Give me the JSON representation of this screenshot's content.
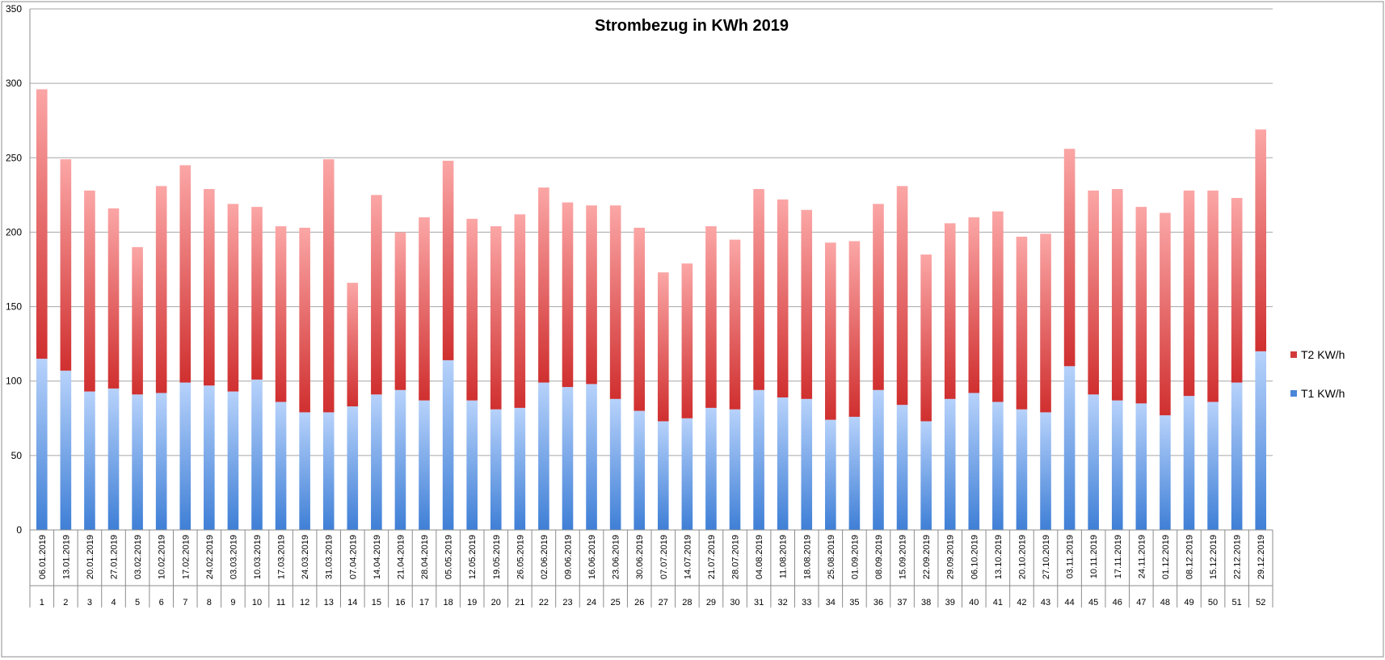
{
  "chart_data": {
    "type": "bar",
    "stacked": true,
    "title": "Strombezug in KWh 2019",
    "ylim": [
      0,
      350
    ],
    "yticks": [
      0,
      50,
      100,
      150,
      200,
      250,
      300,
      350
    ],
    "grid": true,
    "legend_position": "right",
    "categories": [
      "06.01.2019",
      "13.01.2019",
      "20.01.2019",
      "27.01.2019",
      "03.02.2019",
      "10.02.2019",
      "17.02.2019",
      "24.02.2019",
      "03.03.2019",
      "10.03.2019",
      "17.03.2019",
      "24.03.2019",
      "31.03.2019",
      "07.04.2019",
      "14.04.2019",
      "21.04.2019",
      "28.04.2019",
      "05.05.2019",
      "12.05.2019",
      "19.05.2019",
      "26.05.2019",
      "02.06.2019",
      "09.06.2019",
      "16.06.2019",
      "23.06.2019",
      "30.06.2019",
      "07.07.2019",
      "14.07.2019",
      "21.07.2019",
      "28.07.2019",
      "04.08.2019",
      "11.08.2019",
      "18.08.2019",
      "25.08.2019",
      "01.09.2019",
      "08.09.2019",
      "15.09.2019",
      "22.09.2019",
      "29.09.2019",
      "06.10.2019",
      "13.10.2019",
      "20.10.2019",
      "27.10.2019",
      "03.11.2019",
      "10.11.2019",
      "17.11.2019",
      "24.11.2019",
      "01.12.2019",
      "08.12.2019",
      "15.12.2019",
      "22.12.2019",
      "29.12.2019"
    ],
    "weeks": [
      "1",
      "2",
      "3",
      "4",
      "5",
      "6",
      "7",
      "8",
      "9",
      "10",
      "11",
      "12",
      "13",
      "14",
      "15",
      "16",
      "17",
      "18",
      "19",
      "20",
      "21",
      "22",
      "23",
      "24",
      "25",
      "26",
      "27",
      "28",
      "29",
      "30",
      "31",
      "32",
      "33",
      "34",
      "35",
      "36",
      "37",
      "38",
      "39",
      "40",
      "41",
      "42",
      "43",
      "44",
      "45",
      "46",
      "47",
      "48",
      "49",
      "50",
      "51",
      "52"
    ],
    "series": [
      {
        "name": "T1 KW/h",
        "color": "#4a86d8",
        "values": [
          115,
          107,
          93,
          95,
          91,
          92,
          99,
          97,
          93,
          101,
          86,
          79,
          79,
          83,
          91,
          94,
          87,
          114,
          87,
          81,
          82,
          99,
          96,
          98,
          88,
          80,
          73,
          75,
          82,
          81,
          94,
          89,
          88,
          74,
          76,
          94,
          84,
          73,
          88,
          92,
          86,
          81,
          79,
          110,
          91,
          87,
          85,
          77,
          90,
          86,
          99,
          120
        ]
      },
      {
        "name": "T2 KW/h",
        "color": "#d23a3a",
        "values": [
          181,
          142,
          135,
          121,
          99,
          139,
          146,
          132,
          126,
          116,
          118,
          124,
          170,
          83,
          134,
          106,
          123,
          134,
          122,
          123,
          130,
          131,
          124,
          120,
          130,
          123,
          100,
          104,
          122,
          114,
          135,
          133,
          127,
          119,
          118,
          125,
          147,
          112,
          118,
          118,
          128,
          116,
          120,
          146,
          137,
          142,
          132,
          136,
          138,
          142,
          124,
          149
        ]
      }
    ]
  }
}
